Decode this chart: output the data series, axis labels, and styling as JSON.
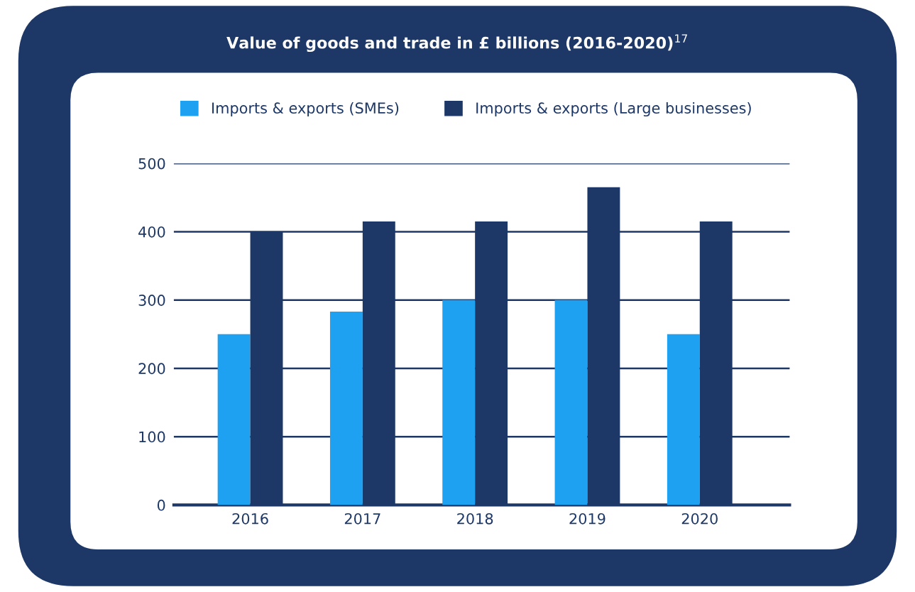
{
  "chart_data": {
    "type": "bar",
    "title": "Value of goods and trade in £ billions (2016-2020)$^{17}$",
    "categories": [
      "2016",
      "2017",
      "2018",
      "2019",
      "2020"
    ],
    "series": [
      {
        "name": "Imports & exports (SMEs)",
        "color": "#1ea1f1",
        "values": [
          250,
          283,
          300,
          300,
          250
        ]
      },
      {
        "name": "Imports & exports (Large businesses)",
        "color": "#1d3867",
        "values": [
          400,
          415,
          415,
          465,
          415
        ]
      }
    ],
    "ylim": [
      0,
      500
    ],
    "yticks": [
      0,
      100,
      200,
      300,
      400,
      500
    ],
    "grid": "y",
    "legend": "top left"
  }
}
